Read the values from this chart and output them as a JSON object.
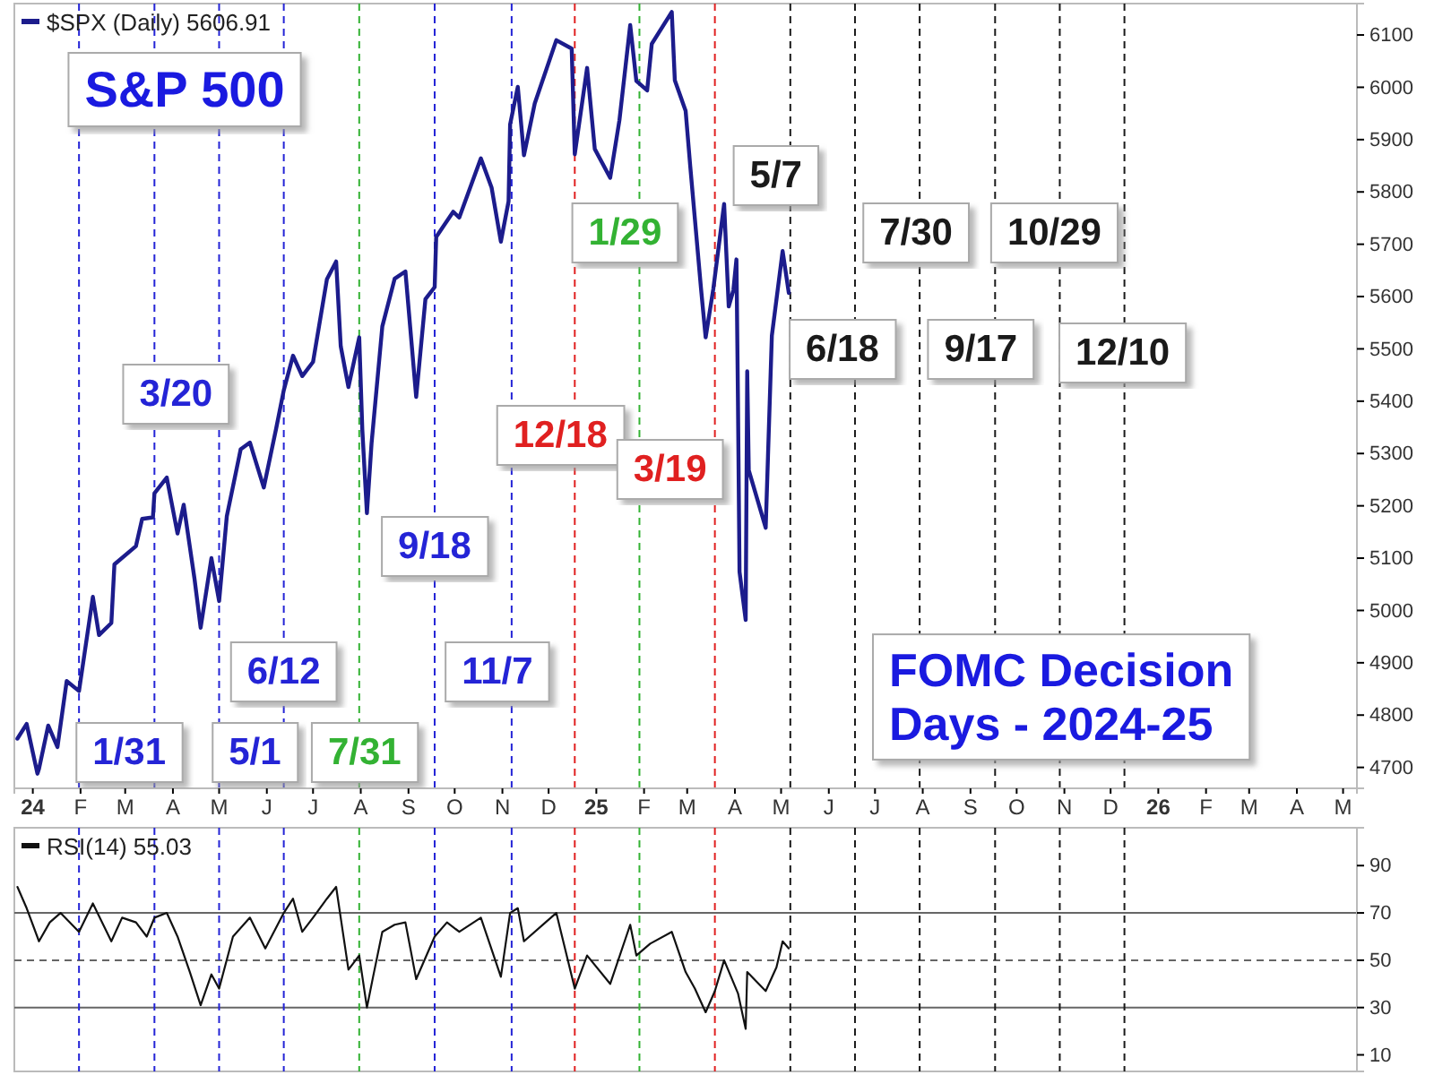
{
  "chart_data": [
    {
      "type": "line",
      "title": "S&P 500",
      "annotations": [
        "FOMC Decision Days - 2024-25"
      ],
      "legend": "top left",
      "xlim": [
        "2023-12-20",
        "2026-05-10"
      ],
      "ylim": [
        4660,
        6160
      ],
      "yticks": [
        4700,
        4800,
        4900,
        5000,
        5100,
        5200,
        5300,
        5400,
        5500,
        5600,
        5700,
        5800,
        5900,
        6000,
        6100
      ],
      "xticks": [
        {
          "value": "2024-01",
          "label": "24"
        },
        {
          "value": "2024-02",
          "label": "F"
        },
        {
          "value": "2024-03",
          "label": "M"
        },
        {
          "value": "2024-04",
          "label": "A"
        },
        {
          "value": "2024-05",
          "label": "M"
        },
        {
          "value": "2024-06",
          "label": "J"
        },
        {
          "value": "2024-07",
          "label": "J"
        },
        {
          "value": "2024-08",
          "label": "A"
        },
        {
          "value": "2024-09",
          "label": "S"
        },
        {
          "value": "2024-10",
          "label": "O"
        },
        {
          "value": "2024-11",
          "label": "N"
        },
        {
          "value": "2024-12",
          "label": "D"
        },
        {
          "value": "2025-01",
          "label": "25"
        },
        {
          "value": "2025-02",
          "label": "F"
        },
        {
          "value": "2025-03",
          "label": "M"
        },
        {
          "value": "2025-04",
          "label": "A"
        },
        {
          "value": "2025-05",
          "label": "M"
        },
        {
          "value": "2025-06",
          "label": "J"
        },
        {
          "value": "2025-07",
          "label": "J"
        },
        {
          "value": "2025-08",
          "label": "A"
        },
        {
          "value": "2025-09",
          "label": "S"
        },
        {
          "value": "2025-10",
          "label": "O"
        },
        {
          "value": "2025-11",
          "label": "N"
        },
        {
          "value": "2025-12",
          "label": "D"
        },
        {
          "value": "2026-01",
          "label": "26"
        },
        {
          "value": "2026-02",
          "label": "F"
        },
        {
          "value": "2026-03",
          "label": "M"
        },
        {
          "value": "2026-04",
          "label": "A"
        },
        {
          "value": "2026-05",
          "label": "M"
        }
      ],
      "ref_lines": [
        {
          "axis": "x",
          "value": "2024-01-31",
          "label": "1/31",
          "color": "#2424d6",
          "line_style": "dashed"
        },
        {
          "axis": "x",
          "value": "2024-03-20",
          "label": "3/20",
          "color": "#2424d6",
          "line_style": "dashed"
        },
        {
          "axis": "x",
          "value": "2024-05-01",
          "label": "5/1",
          "color": "#2424d6",
          "line_style": "dashed"
        },
        {
          "axis": "x",
          "value": "2024-06-12",
          "label": "6/12",
          "color": "#2424d6",
          "line_style": "dashed"
        },
        {
          "axis": "x",
          "value": "2024-07-31",
          "label": "7/31",
          "color": "#33b233",
          "line_style": "dashed"
        },
        {
          "axis": "x",
          "value": "2024-09-18",
          "label": "9/18",
          "color": "#2424d6",
          "line_style": "dashed"
        },
        {
          "axis": "x",
          "value": "2024-11-07",
          "label": "11/7",
          "color": "#2424d6",
          "line_style": "dashed"
        },
        {
          "axis": "x",
          "value": "2024-12-18",
          "label": "12/18",
          "color": "#e02020",
          "line_style": "dashed"
        },
        {
          "axis": "x",
          "value": "2025-01-29",
          "label": "1/29",
          "color": "#33b233",
          "line_style": "dashed"
        },
        {
          "axis": "x",
          "value": "2025-03-19",
          "label": "3/19",
          "color": "#e02020",
          "line_style": "dashed"
        },
        {
          "axis": "x",
          "value": "2025-05-07",
          "label": "5/7",
          "color": "#1a1a1a",
          "line_style": "dashed"
        },
        {
          "axis": "x",
          "value": "2025-06-18",
          "label": "6/18",
          "color": "#1a1a1a",
          "line_style": "dashed"
        },
        {
          "axis": "x",
          "value": "2025-07-30",
          "label": "7/30",
          "color": "#1a1a1a",
          "line_style": "dashed"
        },
        {
          "axis": "x",
          "value": "2025-09-17",
          "label": "9/17",
          "color": "#1a1a1a",
          "line_style": "dashed"
        },
        {
          "axis": "x",
          "value": "2025-10-29",
          "label": "10/29",
          "color": "#1a1a1a",
          "line_style": "dashed"
        },
        {
          "axis": "x",
          "value": "2025-12-10",
          "label": "12/10",
          "color": "#1a1a1a",
          "line_style": "dashed"
        }
      ],
      "series": [
        {
          "name": "$SPX (Daily) 5606.91",
          "color": "#1c1c8c",
          "x": [
            "2023-12-22",
            "2023-12-28",
            "2024-01-04",
            "2024-01-05",
            "2024-01-11",
            "2024-01-17",
            "2024-01-23",
            "2024-01-31",
            "2024-02-09",
            "2024-02-13",
            "2024-02-21",
            "2024-02-23",
            "2024-03-08",
            "2024-03-12",
            "2024-03-19",
            "2024-03-20",
            "2024-03-28",
            "2024-04-04",
            "2024-04-08",
            "2024-04-15",
            "2024-04-19",
            "2024-04-26",
            "2024-05-01",
            "2024-05-06",
            "2024-05-15",
            "2024-05-21",
            "2024-05-30",
            "2024-06-07",
            "2024-06-12",
            "2024-06-18",
            "2024-06-24",
            "2024-07-01",
            "2024-07-10",
            "2024-07-16",
            "2024-07-19",
            "2024-07-24",
            "2024-07-31",
            "2024-08-02",
            "2024-08-05",
            "2024-08-08",
            "2024-08-15",
            "2024-08-23",
            "2024-08-30",
            "2024-09-06",
            "2024-09-12",
            "2024-09-18",
            "2024-09-19",
            "2024-09-30",
            "2024-10-04",
            "2024-10-18",
            "2024-10-25",
            "2024-10-31",
            "2024-11-05",
            "2024-11-06",
            "2024-11-11",
            "2024-11-15",
            "2024-11-22",
            "2024-12-06",
            "2024-12-16",
            "2024-12-18",
            "2024-12-26",
            "2024-12-31",
            "2025-01-10",
            "2025-01-16",
            "2025-01-23",
            "2025-01-27",
            "2025-02-03",
            "2025-02-06",
            "2025-02-19",
            "2025-02-21",
            "2025-02-28",
            "2025-03-03",
            "2025-03-10",
            "2025-03-13",
            "2025-03-18",
            "2025-03-25",
            "2025-03-28",
            "2025-03-31",
            "2025-04-02",
            "2025-04-03",
            "2025-04-04",
            "2025-04-08",
            "2025-04-09",
            "2025-04-10",
            "2025-04-21",
            "2025-04-25",
            "2025-05-02",
            "2025-05-06"
          ],
          "values": [
            4755,
            4783,
            4688,
            4697,
            4780,
            4739,
            4865,
            4846,
            5026,
            4953,
            4976,
            5088,
            5123,
            5175,
            5178,
            5224,
            5254,
            5147,
            5202,
            5061,
            4967,
            5100,
            5018,
            5180,
            5308,
            5321,
            5235,
            5347,
            5421,
            5487,
            5448,
            5475,
            5633,
            5667,
            5505,
            5427,
            5522,
            5346,
            5186,
            5319,
            5543,
            5634,
            5648,
            5408,
            5595,
            5618,
            5714,
            5762,
            5751,
            5864,
            5808,
            5705,
            5782,
            5929,
            6001,
            5870,
            5969,
            6090,
            6074,
            5872,
            6037,
            5882,
            5827,
            5937,
            6119,
            6012,
            5994,
            6083,
            6144,
            6013,
            5955,
            5849,
            5615,
            5522,
            5615,
            5777,
            5581,
            5612,
            5671,
            5397,
            5074,
            4982,
            5457,
            5268,
            5158,
            5525,
            5687,
            5607
          ]
        }
      ]
    },
    {
      "type": "line",
      "legend": "top left",
      "tick_labels": "y",
      "xlim": [
        "2023-12-20",
        "2026-05-10"
      ],
      "ylim": [
        3,
        106
      ],
      "yticks": [
        10,
        30,
        50,
        70,
        90
      ],
      "ref_lines": [
        {
          "axis": "y",
          "value": 70,
          "color": "#666666",
          "line_style": "solid"
        },
        {
          "axis": "y",
          "value": 50,
          "color": "#666666",
          "line_style": "dashed"
        },
        {
          "axis": "y",
          "value": 30,
          "color": "#666666",
          "line_style": "solid"
        },
        {
          "axis": "x",
          "value": "2024-01-31",
          "color": "#2424d6",
          "line_style": "dashed"
        },
        {
          "axis": "x",
          "value": "2024-03-20",
          "color": "#2424d6",
          "line_style": "dashed"
        },
        {
          "axis": "x",
          "value": "2024-05-01",
          "color": "#2424d6",
          "line_style": "dashed"
        },
        {
          "axis": "x",
          "value": "2024-06-12",
          "color": "#2424d6",
          "line_style": "dashed"
        },
        {
          "axis": "x",
          "value": "2024-07-31",
          "color": "#33b233",
          "line_style": "dashed"
        },
        {
          "axis": "x",
          "value": "2024-09-18",
          "color": "#2424d6",
          "line_style": "dashed"
        },
        {
          "axis": "x",
          "value": "2024-11-07",
          "color": "#2424d6",
          "line_style": "dashed"
        },
        {
          "axis": "x",
          "value": "2024-12-18",
          "color": "#e02020",
          "line_style": "dashed"
        },
        {
          "axis": "x",
          "value": "2025-01-29",
          "color": "#33b233",
          "line_style": "dashed"
        },
        {
          "axis": "x",
          "value": "2025-03-19",
          "color": "#e02020",
          "line_style": "dashed"
        },
        {
          "axis": "x",
          "value": "2025-05-07",
          "color": "#1a1a1a",
          "line_style": "dashed"
        },
        {
          "axis": "x",
          "value": "2025-06-18",
          "color": "#1a1a1a",
          "line_style": "dashed"
        },
        {
          "axis": "x",
          "value": "2025-07-30",
          "color": "#1a1a1a",
          "line_style": "dashed"
        },
        {
          "axis": "x",
          "value": "2025-09-17",
          "color": "#1a1a1a",
          "line_style": "dashed"
        },
        {
          "axis": "x",
          "value": "2025-10-29",
          "color": "#1a1a1a",
          "line_style": "dashed"
        },
        {
          "axis": "x",
          "value": "2025-12-10",
          "color": "#1a1a1a",
          "line_style": "dashed"
        }
      ],
      "series": [
        {
          "name": "RSI(14) 55.03",
          "color": "#111111",
          "x": [
            "2023-12-22",
            "2023-12-28",
            "2024-01-05",
            "2024-01-12",
            "2024-01-19",
            "2024-01-31",
            "2024-02-09",
            "2024-02-21",
            "2024-02-28",
            "2024-03-08",
            "2024-03-15",
            "2024-03-20",
            "2024-03-28",
            "2024-04-04",
            "2024-04-12",
            "2024-04-19",
            "2024-04-26",
            "2024-05-01",
            "2024-05-10",
            "2024-05-21",
            "2024-05-31",
            "2024-06-12",
            "2024-06-18",
            "2024-06-24",
            "2024-07-01",
            "2024-07-10",
            "2024-07-16",
            "2024-07-24",
            "2024-07-31",
            "2024-08-05",
            "2024-08-09",
            "2024-08-15",
            "2024-08-23",
            "2024-08-30",
            "2024-09-06",
            "2024-09-18",
            "2024-09-26",
            "2024-10-04",
            "2024-10-18",
            "2024-10-31",
            "2024-11-06",
            "2024-11-11",
            "2024-11-15",
            "2024-11-29",
            "2024-12-06",
            "2024-12-18",
            "2024-12-26",
            "2025-01-10",
            "2025-01-23",
            "2025-01-27",
            "2025-02-05",
            "2025-02-19",
            "2025-02-28",
            "2025-03-06",
            "2025-03-13",
            "2025-03-19",
            "2025-03-25",
            "2025-04-03",
            "2025-04-08",
            "2025-04-09",
            "2025-04-21",
            "2025-04-28",
            "2025-05-02",
            "2025-05-06"
          ],
          "values": [
            81,
            72,
            58,
            66,
            70,
            62,
            74,
            58,
            68,
            66,
            60,
            68,
            70,
            60,
            45,
            31,
            44,
            38,
            60,
            68,
            55,
            70,
            76,
            62,
            68,
            76,
            81,
            46,
            52,
            30,
            43,
            62,
            65,
            66,
            42,
            60,
            66,
            62,
            68,
            43,
            70,
            72,
            58,
            66,
            70,
            38,
            52,
            40,
            65,
            52,
            57,
            62,
            45,
            38,
            28,
            37,
            50,
            36,
            21,
            45,
            37,
            47,
            58,
            55
          ]
        }
      ]
    }
  ]
}
